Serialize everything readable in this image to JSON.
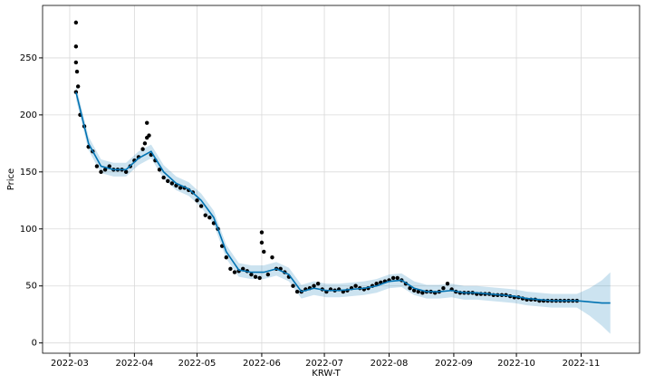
{
  "chart_data": {
    "type": "forecast",
    "xlabel": "KRW-T",
    "ylabel": "Price",
    "xlim": [
      -13,
      273
    ],
    "ylim": [
      -9,
      296
    ],
    "xticks": [
      {
        "value": 0,
        "label": "2022-03"
      },
      {
        "value": 31,
        "label": "2022-04"
      },
      {
        "value": 61,
        "label": "2022-05"
      },
      {
        "value": 92,
        "label": "2022-06"
      },
      {
        "value": 122,
        "label": "2022-07"
      },
      {
        "value": 153,
        "label": "2022-08"
      },
      {
        "value": 184,
        "label": "2022-09"
      },
      {
        "value": 214,
        "label": "2022-10"
      },
      {
        "value": 245,
        "label": "2022-11"
      }
    ],
    "yticks": [
      0,
      50,
      100,
      150,
      200,
      250
    ],
    "grid": true,
    "point_color": "#000000",
    "line_color": "#0072B2",
    "band_color": "#0072B2",
    "points_x": [
      3,
      3,
      3,
      3,
      3.5,
      4,
      5,
      7,
      9,
      11,
      13,
      15,
      17,
      19,
      21,
      23,
      25,
      27,
      29,
      31,
      33,
      35,
      36,
      37,
      37,
      38,
      39,
      41,
      43,
      45,
      47,
      49,
      51,
      53,
      55,
      57,
      59,
      61,
      63,
      65,
      67,
      69,
      71,
      73,
      75,
      77,
      79,
      81,
      83,
      85,
      87,
      89,
      91,
      92,
      92,
      93,
      95,
      97,
      99,
      101,
      103,
      105,
      107,
      109,
      111,
      113,
      115,
      117,
      119,
      121,
      123,
      125,
      127,
      129,
      131,
      133,
      135,
      137,
      139,
      141,
      143,
      145,
      147,
      149,
      151,
      153,
      155,
      157,
      159,
      161,
      163,
      165,
      167,
      169,
      171,
      173,
      175,
      177,
      179,
      181,
      183,
      185,
      187,
      189,
      191,
      193,
      195,
      197,
      199,
      201,
      203,
      205,
      207,
      209,
      211,
      213,
      215,
      217,
      219,
      221,
      223,
      225,
      227,
      229,
      231,
      233,
      235,
      237,
      239,
      241,
      243
    ],
    "points_y": [
      220,
      281,
      260,
      246,
      238,
      225,
      200,
      190,
      172,
      168,
      155,
      150,
      152,
      155,
      152,
      152,
      152,
      150,
      155,
      160,
      163,
      170,
      175,
      180,
      193,
      182,
      165,
      160,
      152,
      145,
      142,
      140,
      138,
      136,
      136,
      134,
      132,
      125,
      120,
      112,
      110,
      105,
      100,
      85,
      75,
      65,
      62,
      63,
      65,
      63,
      60,
      58,
      57,
      88,
      97,
      80,
      60,
      75,
      65,
      65,
      62,
      58,
      50,
      45,
      45,
      47,
      48,
      50,
      52,
      47,
      45,
      47,
      46,
      47,
      45,
      46,
      48,
      50,
      48,
      47,
      48,
      50,
      52,
      53,
      54,
      55,
      57,
      57,
      55,
      52,
      48,
      46,
      45,
      44,
      45,
      45,
      44,
      45,
      48,
      52,
      47,
      45,
      44,
      44,
      44,
      44,
      43,
      43,
      43,
      43,
      42,
      42,
      42,
      42,
      41,
      40,
      40,
      39,
      38,
      38,
      38,
      37,
      37,
      37,
      37,
      37,
      37,
      37,
      37,
      37,
      37
    ],
    "forecast_x": [
      3,
      9,
      15,
      21,
      27,
      33,
      39,
      45,
      51,
      57,
      63,
      69,
      75,
      81,
      87,
      93,
      99,
      105,
      111,
      117,
      123,
      129,
      135,
      141,
      147,
      153,
      159,
      165,
      171,
      177,
      183,
      189,
      195,
      201,
      207,
      213,
      219,
      225,
      231,
      237,
      243,
      249,
      255,
      259
    ],
    "forecast": [
      220,
      175,
      155,
      152,
      152,
      162,
      168,
      150,
      140,
      135,
      125,
      110,
      80,
      64,
      62,
      62,
      65,
      60,
      45,
      48,
      46,
      46,
      47,
      48,
      50,
      54,
      55,
      48,
      45,
      45,
      46,
      44,
      44,
      43,
      42,
      41,
      39,
      38,
      37,
      37,
      37,
      36,
      35,
      35
    ],
    "lower": [
      214,
      169,
      149,
      146,
      146,
      156,
      162,
      144,
      134,
      129,
      119,
      104,
      74,
      58,
      56,
      56,
      59,
      54,
      39,
      42,
      40,
      40,
      41,
      42,
      44,
      48,
      49,
      42,
      39,
      39,
      40,
      38,
      38,
      37,
      36,
      35,
      33,
      32,
      31,
      31,
      31,
      24,
      15,
      8
    ],
    "upper": [
      226,
      181,
      161,
      158,
      158,
      168,
      174,
      156,
      146,
      141,
      131,
      116,
      86,
      70,
      68,
      68,
      71,
      66,
      51,
      54,
      52,
      52,
      53,
      54,
      56,
      60,
      61,
      54,
      51,
      51,
      52,
      50,
      50,
      49,
      48,
      47,
      45,
      44,
      43,
      43,
      43,
      48,
      55,
      62
    ]
  }
}
